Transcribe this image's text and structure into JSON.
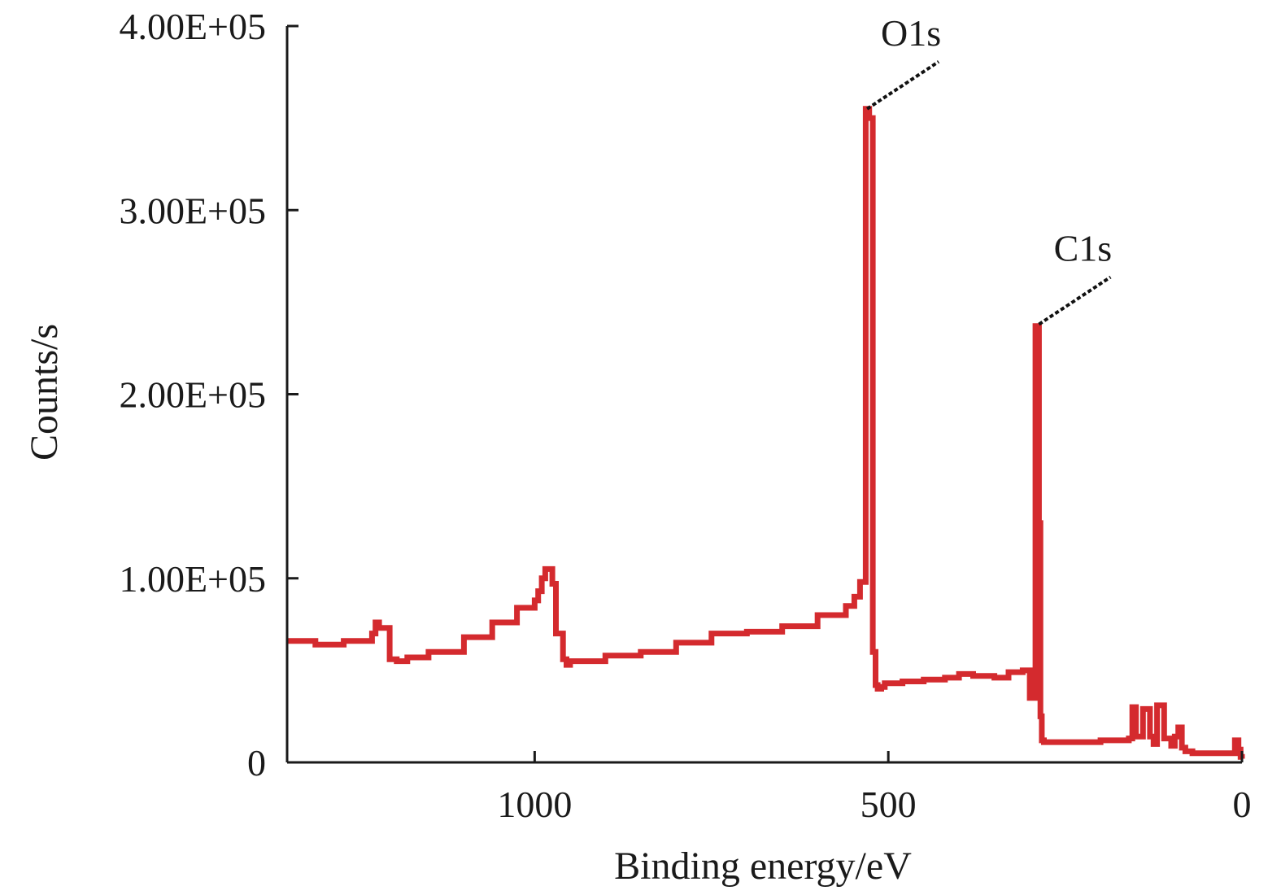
{
  "chart_data": {
    "type": "line",
    "xlabel": "Binding energy/eV",
    "ylabel": "Counts/s",
    "xlim": [
      1350,
      0
    ],
    "ylim": [
      0,
      400000
    ],
    "x_ticks": [
      1000,
      500,
      0
    ],
    "x_tick_labels": [
      "1000",
      "500",
      "0"
    ],
    "y_ticks": [
      0,
      100000,
      200000,
      300000,
      400000
    ],
    "y_tick_labels": [
      "0",
      "1.00E+05",
      "2.00E+05",
      "3.00E+05",
      "4.00E+05"
    ],
    "grid": false,
    "series": [
      {
        "color": "#d42a2e",
        "x": [
          1350,
          1310,
          1270,
          1230,
          1225,
          1220,
          1205,
          1195,
          1180,
          1150,
          1100,
          1060,
          1025,
          1000,
          995,
          990,
          985,
          975,
          970,
          960,
          955,
          950,
          900,
          850,
          800,
          750,
          700,
          650,
          600,
          560,
          548,
          540,
          532,
          530,
          527,
          522,
          518,
          515,
          510,
          505,
          480,
          450,
          420,
          400,
          380,
          350,
          330,
          310,
          300,
          292,
          289,
          287,
          285,
          283,
          280,
          270,
          250,
          200,
          160,
          155,
          150,
          140,
          130,
          125,
          120,
          110,
          100,
          95,
          90,
          85,
          80,
          70,
          60,
          50,
          40,
          20,
          10,
          5,
          2,
          0
        ],
        "y": [
          66000,
          64000,
          66000,
          70000,
          76000,
          73000,
          56000,
          55000,
          57000,
          60000,
          68000,
          76000,
          84000,
          88000,
          93000,
          100000,
          105000,
          97000,
          70000,
          56000,
          53000,
          55000,
          58000,
          60000,
          65000,
          70000,
          71000,
          74000,
          80000,
          85000,
          90000,
          98000,
          355000,
          355000,
          350000,
          60000,
          42000,
          40000,
          41000,
          43000,
          44000,
          45000,
          46000,
          48000,
          47000,
          46000,
          49000,
          50000,
          35000,
          237000,
          237000,
          130000,
          25000,
          12000,
          11000,
          11000,
          11000,
          12000,
          13000,
          30000,
          14000,
          29000,
          14000,
          10000,
          31000,
          13000,
          9000,
          14000,
          19000,
          8000,
          6000,
          5000,
          5000,
          5000,
          5000,
          5000,
          12000,
          7000,
          3000,
          2000
        ]
      }
    ],
    "annotations": [
      {
        "text": "O1s",
        "x": 530,
        "y": 355000
      },
      {
        "text": "C1s",
        "x": 287,
        "y": 238000
      }
    ]
  }
}
